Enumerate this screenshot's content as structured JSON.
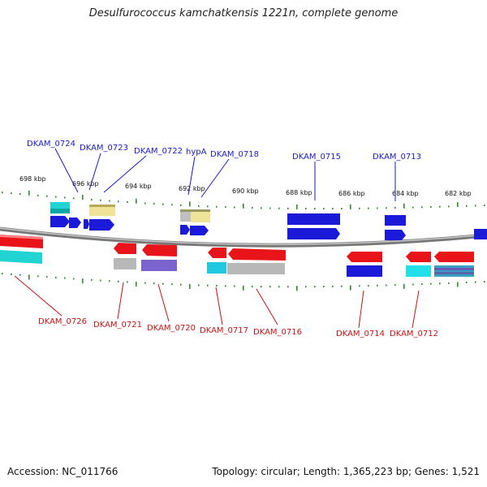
{
  "title": "Desulfurococcus kamchatkensis 1221n, complete genome",
  "footer": {
    "accession": "Accession: NC_011766",
    "summary": "Topology: circular; Length: 1,365,223 bp; Genes: 1,521"
  },
  "colors": {
    "forward_label": "#1a1acc",
    "reverse_label": "#cc1111",
    "tick": "#2e8b2e",
    "backbone": "#8a8a8a"
  },
  "scale_ticks": [
    "698 kbp",
    "696 kbp",
    "694 kbp",
    "692 kbp",
    "690 kbp",
    "688 kbp",
    "686 kbp",
    "684 kbp",
    "682 kbp"
  ],
  "forward_genes": [
    "DKAM_0724",
    "DKAM_0723",
    "DKAM_0722",
    "hypA",
    "DKAM_0718",
    "DKAM_0715",
    "DKAM_0713"
  ],
  "reverse_genes": [
    "DKAM_0726",
    "DKAM_0721",
    "DKAM_0720",
    "DKAM_0717",
    "DKAM_0716",
    "DKAM_0714",
    "DKAM_0712"
  ]
}
